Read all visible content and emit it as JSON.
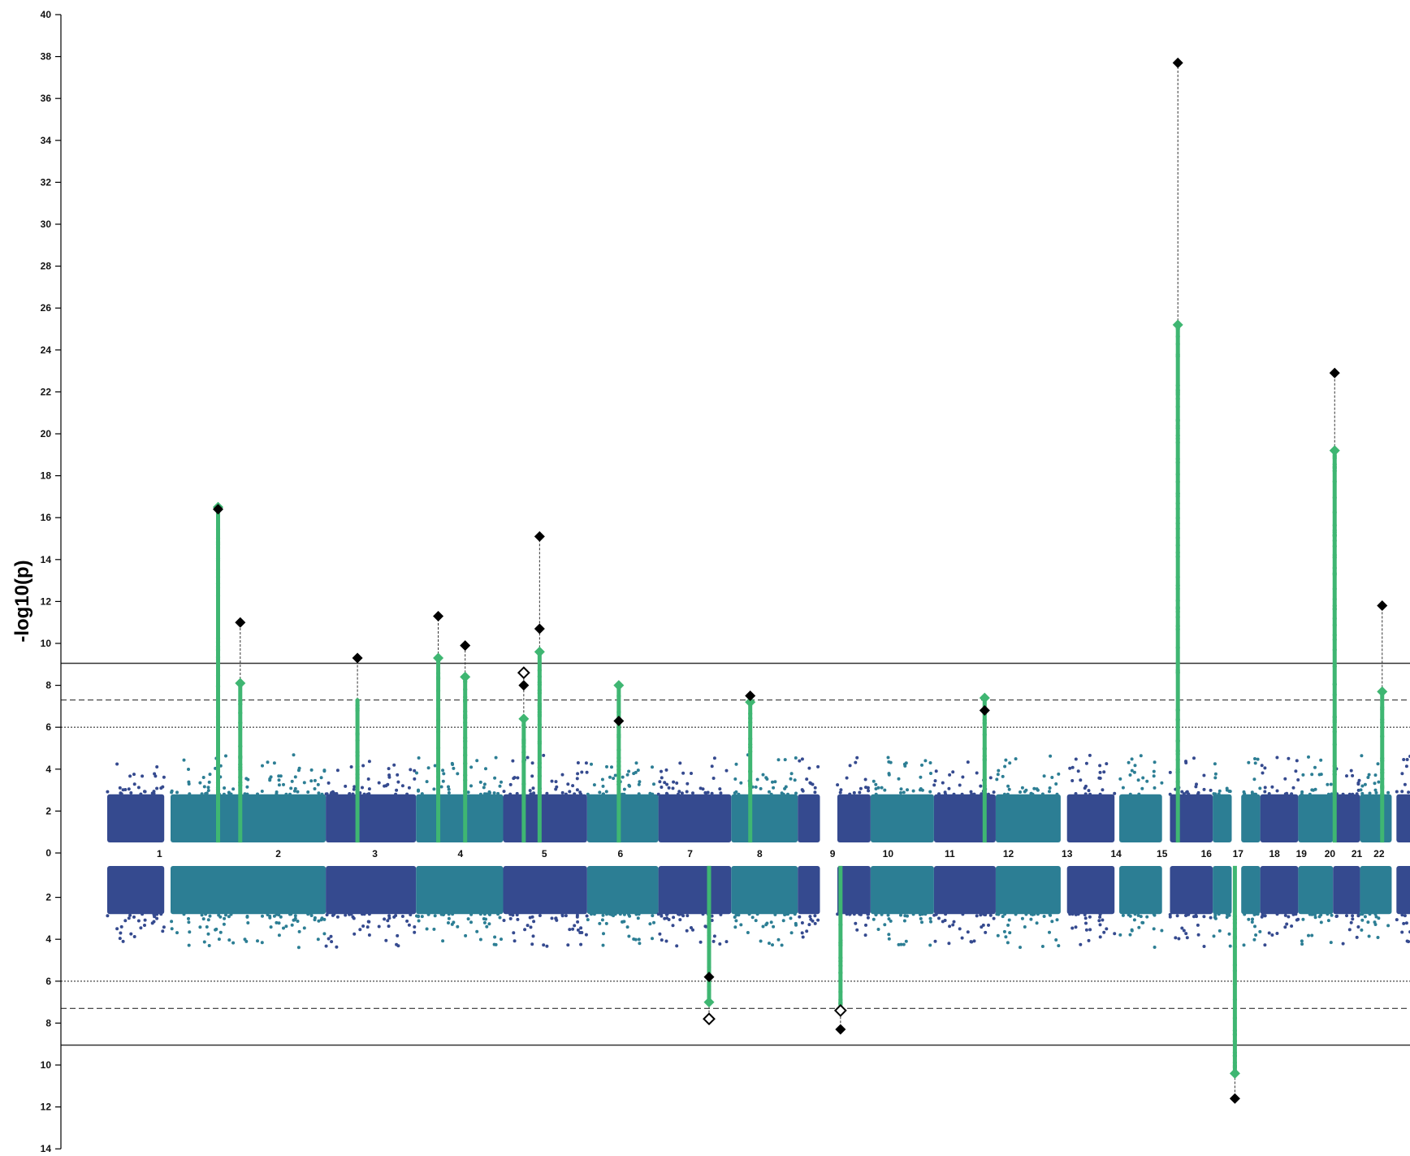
{
  "chart_data": {
    "type": "scatter",
    "subtype": "miami-manhattan",
    "ylabel": "-log10(p)",
    "top_ylim": [
      0,
      40
    ],
    "bottom_ylim": [
      0,
      14
    ],
    "top_yticks": [
      0,
      2,
      4,
      6,
      8,
      10,
      12,
      14,
      16,
      18,
      20,
      22,
      24,
      26,
      28,
      30,
      32,
      34,
      36,
      38,
      40
    ],
    "bottom_yticks": [
      2,
      4,
      6,
      8,
      10,
      12,
      14
    ],
    "thresholds": [
      {
        "value": 9.05,
        "style": "solid"
      },
      {
        "value": 7.3,
        "style": "dashed"
      },
      {
        "value": 6.0,
        "style": "dotted"
      }
    ],
    "chromosomes": [
      {
        "label": "1",
        "start": 0,
        "end": 3.6,
        "color": "#354a8f"
      },
      {
        "label": "2",
        "start": 4.0,
        "end": 13.8,
        "color": "#2c7e94"
      },
      {
        "label": "3",
        "start": 13.8,
        "end": 19.5,
        "color": "#354a8f"
      },
      {
        "label": "4",
        "start": 19.5,
        "end": 25.0,
        "color": "#2c7e94"
      },
      {
        "label": "5",
        "start": 25.0,
        "end": 30.3,
        "color": "#354a8f"
      },
      {
        "label": "6",
        "start": 30.3,
        "end": 34.8,
        "color": "#2c7e94"
      },
      {
        "label": "7",
        "start": 34.8,
        "end": 39.4,
        "color": "#354a8f"
      },
      {
        "label": "8",
        "start": 39.4,
        "end": 43.6,
        "color": "#2c7e94"
      },
      {
        "label": "9",
        "start": 43.6,
        "end": 45.0,
        "color": "#354a8f"
      },
      {
        "label": "9",
        "start": 46.1,
        "end": 48.2,
        "color": "#354a8f"
      },
      {
        "label": "10",
        "start": 48.2,
        "end": 52.2,
        "color": "#2c7e94"
      },
      {
        "label": "11",
        "start": 52.2,
        "end": 56.1,
        "color": "#354a8f"
      },
      {
        "label": "12",
        "start": 56.1,
        "end": 60.2,
        "color": "#2c7e94"
      },
      {
        "label": "13",
        "start": 60.6,
        "end": 63.6,
        "color": "#354a8f"
      },
      {
        "label": "14",
        "start": 63.9,
        "end": 66.6,
        "color": "#2c7e94"
      },
      {
        "label": "15",
        "start": 67.1,
        "end": 69.8,
        "color": "#354a8f"
      },
      {
        "label": "16",
        "start": 69.8,
        "end": 71.0,
        "color": "#2c7e94"
      },
      {
        "label": "16",
        "start": 71.6,
        "end": 72.8,
        "color": "#2c7e94"
      },
      {
        "label": "17",
        "start": 72.8,
        "end": 75.2,
        "color": "#354a8f"
      },
      {
        "label": "18",
        "start": 75.2,
        "end": 77.4,
        "color": "#2c7e94"
      },
      {
        "label": "19",
        "start": 77.4,
        "end": 79.1,
        "color": "#354a8f"
      },
      {
        "label": "20",
        "start": 79.1,
        "end": 81.1,
        "color": "#2c7e94"
      },
      {
        "label": "21",
        "start": 81.4,
        "end": 82.6,
        "color": "#354a8f"
      },
      {
        "label": "22",
        "start": 83.0,
        "end": 84.3,
        "color": "#2c7e94"
      }
    ],
    "chromosome_labels": [
      {
        "label": "1",
        "x": 3.3
      },
      {
        "label": "2",
        "x": 10.8
      },
      {
        "label": "3",
        "x": 16.9
      },
      {
        "label": "4",
        "x": 22.3
      },
      {
        "label": "5",
        "x": 27.6
      },
      {
        "label": "6",
        "x": 32.4
      },
      {
        "label": "7",
        "x": 36.8
      },
      {
        "label": "8",
        "x": 41.2
      },
      {
        "label": "9",
        "x": 45.8
      },
      {
        "label": "10",
        "x": 49.3
      },
      {
        "label": "11",
        "x": 53.2
      },
      {
        "label": "12",
        "x": 56.9
      },
      {
        "label": "13",
        "x": 60.6
      },
      {
        "label": "14",
        "x": 63.7
      },
      {
        "label": "15",
        "x": 66.6
      },
      {
        "label": "16",
        "x": 69.4
      },
      {
        "label": "17",
        "x": 71.4
      },
      {
        "label": "18",
        "x": 73.7
      },
      {
        "label": "19",
        "x": 75.4
      },
      {
        "label": "20",
        "x": 77.2
      },
      {
        "label": "21",
        "x": 78.9
      },
      {
        "label": "22",
        "x": 80.3
      }
    ],
    "top_peaks": [
      {
        "x": 7.0,
        "max": 16.5,
        "green": [
          16.5
        ],
        "black": [
          16.4
        ],
        "open": []
      },
      {
        "x": 8.4,
        "max": 8.1,
        "green": [
          8.1
        ],
        "black": [
          11.0
        ],
        "open": []
      },
      {
        "x": 15.8,
        "max": 7.3,
        "green": [],
        "black": [
          9.3
        ],
        "open": []
      },
      {
        "x": 20.9,
        "max": 9.3,
        "green": [
          9.3
        ],
        "black": [
          11.3
        ],
        "open": []
      },
      {
        "x": 22.6,
        "max": 8.4,
        "green": [
          8.4
        ],
        "black": [
          9.9
        ],
        "open": []
      },
      {
        "x": 26.3,
        "max": 6.5,
        "green": [
          6.4
        ],
        "black": [
          8.0
        ],
        "open": [
          8.6
        ]
      },
      {
        "x": 27.3,
        "max": 9.6,
        "green": [
          9.6
        ],
        "black": [
          15.1,
          10.7
        ],
        "open": []
      },
      {
        "x": 32.3,
        "max": 8.0,
        "green": [
          8.0
        ],
        "black": [
          6.3
        ],
        "open": []
      },
      {
        "x": 40.6,
        "max": 7.2,
        "green": [
          7.2
        ],
        "black": [
          7.5
        ],
        "open": []
      },
      {
        "x": 55.4,
        "max": 7.4,
        "green": [
          7.4
        ],
        "black": [
          6.8
        ],
        "open": []
      },
      {
        "x": 67.6,
        "max": 25.2,
        "green": [
          25.2
        ],
        "black": [
          37.7
        ],
        "open": []
      },
      {
        "x": 77.5,
        "max": 19.2,
        "green": [
          19.2
        ],
        "black": [
          22.9
        ],
        "open": []
      },
      {
        "x": 80.5,
        "max": 7.7,
        "green": [
          7.7
        ],
        "black": [
          11.8
        ],
        "open": []
      }
    ],
    "bottom_peaks": [
      {
        "x": 38.0,
        "max": 7.0,
        "green": [
          7.0
        ],
        "black": [
          5.8
        ],
        "open": [
          7.8
        ]
      },
      {
        "x": 46.3,
        "max": 7.3,
        "green": [],
        "black": [
          8.3
        ],
        "open": [
          7.4
        ]
      },
      {
        "x": 71.2,
        "max": 10.4,
        "green": [
          10.4
        ],
        "black": [
          11.6
        ],
        "open": []
      }
    ]
  }
}
